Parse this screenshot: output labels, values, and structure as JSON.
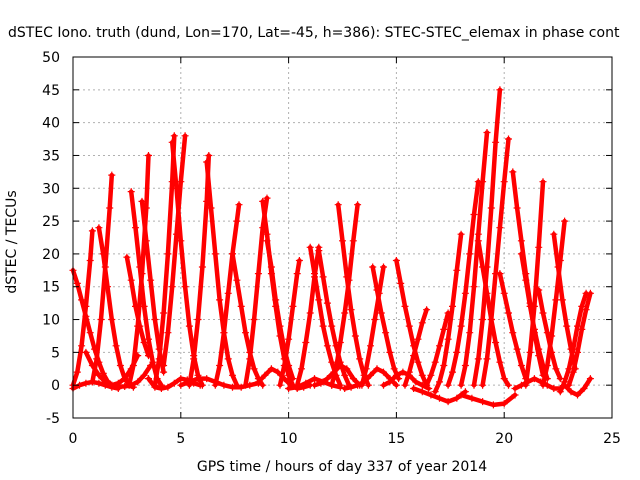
{
  "chart_data": {
    "type": "scatter",
    "title": "dSTEC Iono. truth (dund, Lon=170, Lat=-45, h=386): STEC-STEC_elemax in phase cont",
    "xlabel": "GPS time / hours of day 337 of year 2014",
    "ylabel": "dSTEC  / TECUs",
    "xlim": [
      0,
      25
    ],
    "ylim": [
      -5,
      50
    ],
    "x_ticks": [
      "0",
      "5",
      "10",
      "15",
      "20",
      "25"
    ],
    "y_ticks": [
      "-5",
      "0",
      "5",
      "10",
      "15",
      "20",
      "25",
      "30",
      "35",
      "40",
      "45",
      "50"
    ],
    "grid": true,
    "marker": "+",
    "color": "#ff0000",
    "series": [
      {
        "x": [
          0.0,
          0.2,
          0.4,
          0.6,
          0.8,
          1.0,
          1.2,
          1.4,
          1.6,
          1.8
        ],
        "y": [
          17.5,
          15.5,
          13.0,
          10.5,
          8.0,
          5.5,
          3.5,
          1.8,
          0.6,
          0.0
        ]
      },
      {
        "x": [
          0.0,
          0.3,
          0.6,
          0.9,
          1.2,
          1.5,
          1.8,
          2.1
        ],
        "y": [
          -0.5,
          0.0,
          0.3,
          0.5,
          0.3,
          0.0,
          -0.3,
          -0.5
        ]
      },
      {
        "x": [
          0.0,
          0.2,
          0.4,
          0.6,
          0.8,
          0.9
        ],
        "y": [
          0.0,
          2.0,
          6.0,
          12.0,
          19.0,
          23.5
        ]
      },
      {
        "x": [
          0.6,
          0.9,
          1.2,
          1.5,
          1.8,
          2.1,
          2.4,
          2.7,
          3.0
        ],
        "y": [
          5.0,
          3.0,
          1.5,
          0.5,
          0.0,
          0.3,
          1.0,
          2.5,
          4.5
        ]
      },
      {
        "x": [
          0.9,
          1.1,
          1.3,
          1.5,
          1.7,
          1.8
        ],
        "y": [
          0.5,
          4.0,
          10.0,
          18.0,
          27.0,
          32.0
        ]
      },
      {
        "x": [
          1.2,
          1.4,
          1.6,
          1.8,
          2.0,
          2.2,
          2.4,
          2.6,
          2.8
        ],
        "y": [
          24.0,
          20.0,
          15.0,
          10.0,
          6.0,
          3.0,
          1.0,
          0.0,
          -0.3
        ]
      },
      {
        "x": [
          1.5,
          1.8,
          2.1,
          2.4,
          2.7,
          3.0,
          3.3,
          3.6
        ],
        "y": [
          0.3,
          0.0,
          -0.2,
          -0.2,
          0.0,
          0.5,
          1.5,
          3.0
        ]
      },
      {
        "x": [
          2.6,
          2.8,
          3.0,
          3.2,
          3.4,
          3.5
        ],
        "y": [
          0.0,
          3.0,
          9.0,
          17.0,
          27.0,
          35.0
        ]
      },
      {
        "x": [
          2.7,
          2.9,
          3.1,
          3.3,
          3.5,
          3.7,
          3.9,
          4.1
        ],
        "y": [
          29.5,
          24.0,
          18.0,
          12.0,
          7.0,
          3.5,
          1.0,
          0.0
        ]
      },
      {
        "x": [
          2.5,
          2.7,
          2.9,
          3.1,
          3.3,
          3.5
        ],
        "y": [
          19.5,
          16.0,
          12.0,
          9.0,
          6.5,
          4.5
        ]
      },
      {
        "x": [
          3.2,
          3.4,
          3.6,
          3.8,
          4.0,
          4.2
        ],
        "y": [
          28.0,
          22.0,
          16.0,
          10.0,
          5.5,
          2.0
        ]
      },
      {
        "x": [
          3.5,
          3.8,
          4.1,
          4.4,
          4.7,
          5.0,
          5.3,
          5.6,
          5.9
        ],
        "y": [
          1.0,
          -0.3,
          -0.5,
          -0.3,
          0.3,
          1.0,
          0.8,
          0.3,
          0.0
        ]
      },
      {
        "x": [
          3.8,
          4.0,
          4.2,
          4.4,
          4.6,
          4.7
        ],
        "y": [
          0.0,
          4.0,
          11.0,
          20.0,
          31.0,
          38.0
        ]
      },
      {
        "x": [
          4.6,
          4.8,
          5.0,
          5.2,
          5.4,
          5.6,
          5.8,
          6.0
        ],
        "y": [
          37.0,
          30.0,
          22.0,
          15.0,
          9.0,
          4.5,
          1.5,
          0.0
        ]
      },
      {
        "x": [
          4.2,
          4.4,
          4.6,
          4.8,
          5.0,
          5.2
        ],
        "y": [
          3.0,
          8.0,
          15.0,
          23.0,
          31.0,
          38.0
        ]
      },
      {
        "x": [
          5.4,
          5.6,
          5.8,
          6.0,
          6.2,
          6.3
        ],
        "y": [
          0.0,
          4.0,
          10.0,
          18.0,
          28.0,
          35.0
        ]
      },
      {
        "x": [
          6.2,
          6.4,
          6.6,
          6.8,
          7.0,
          7.2,
          7.4,
          7.6
        ],
        "y": [
          34.0,
          27.0,
          20.0,
          13.0,
          8.0,
          4.0,
          1.5,
          0.0
        ]
      },
      {
        "x": [
          5.0,
          5.4,
          5.8,
          6.2,
          6.6,
          7.0,
          7.4,
          7.8,
          8.2,
          8.6
        ],
        "y": [
          0.0,
          0.5,
          1.0,
          1.0,
          0.5,
          0.0,
          -0.3,
          -0.3,
          0.0,
          0.3
        ]
      },
      {
        "x": [
          6.6,
          6.8,
          7.0,
          7.2,
          7.4,
          7.6,
          7.7
        ],
        "y": [
          0.0,
          3.0,
          8.0,
          14.0,
          20.0,
          25.0,
          27.5
        ]
      },
      {
        "x": [
          7.4,
          7.6,
          7.8,
          8.0,
          8.2,
          8.4,
          8.6,
          8.8
        ],
        "y": [
          20.0,
          16.0,
          12.0,
          8.0,
          5.0,
          2.5,
          1.0,
          0.0
        ]
      },
      {
        "x": [
          8.0,
          8.2,
          8.4,
          8.6,
          8.8,
          9.0
        ],
        "y": [
          0.0,
          4.0,
          10.0,
          17.0,
          24.0,
          28.5
        ]
      },
      {
        "x": [
          8.8,
          9.0,
          9.2,
          9.4,
          9.6,
          9.8,
          10.0,
          10.2
        ],
        "y": [
          28.0,
          23.0,
          17.0,
          12.0,
          7.5,
          4.0,
          1.5,
          0.0
        ]
      },
      {
        "x": [
          8.6,
          8.9,
          9.2,
          9.5,
          9.8,
          10.1,
          10.4,
          10.7,
          11.0
        ],
        "y": [
          0.5,
          1.5,
          2.5,
          2.0,
          1.0,
          0.0,
          -0.5,
          -0.3,
          0.0
        ]
      },
      {
        "x": [
          9.0,
          9.2,
          9.4,
          9.6,
          9.8,
          10.0,
          10.2
        ],
        "y": [
          22.0,
          18.0,
          13.0,
          9.0,
          5.5,
          3.0,
          1.0
        ]
      },
      {
        "x": [
          9.6,
          9.8,
          10.0,
          10.2,
          10.4,
          10.5
        ],
        "y": [
          0.0,
          3.0,
          7.0,
          12.0,
          17.0,
          19.0
        ]
      },
      {
        "x": [
          10.0,
          10.4,
          10.8,
          11.2,
          11.6,
          12.0,
          12.4
        ],
        "y": [
          -0.5,
          -0.3,
          0.3,
          1.0,
          0.5,
          0.0,
          -0.3
        ]
      },
      {
        "x": [
          10.4,
          10.6,
          10.8,
          11.0,
          11.2,
          11.4
        ],
        "y": [
          0.0,
          2.5,
          6.5,
          11.0,
          16.5,
          21.0
        ]
      },
      {
        "x": [
          11.0,
          11.2,
          11.4,
          11.6,
          11.8,
          12.0,
          12.2,
          12.4
        ],
        "y": [
          21.0,
          17.0,
          13.0,
          9.0,
          6.0,
          3.5,
          1.5,
          0.0
        ]
      },
      {
        "x": [
          11.4,
          11.6,
          11.8,
          12.0,
          12.2,
          12.4,
          12.6,
          12.8
        ],
        "y": [
          20.5,
          16.5,
          12.5,
          9.0,
          6.0,
          3.5,
          1.5,
          0.0
        ]
      },
      {
        "x": [
          11.2,
          11.5,
          11.8,
          12.1,
          12.4,
          12.7,
          13.0,
          13.3
        ],
        "y": [
          0.0,
          0.3,
          1.0,
          2.0,
          3.0,
          2.5,
          1.0,
          0.0
        ]
      },
      {
        "x": [
          12.0,
          12.2,
          12.4,
          12.6,
          12.8,
          13.0,
          13.2
        ],
        "y": [
          0.0,
          2.5,
          6.5,
          11.0,
          16.0,
          22.0,
          27.5
        ]
      },
      {
        "x": [
          12.3,
          12.5,
          12.7,
          12.9,
          13.1,
          13.3,
          13.5,
          13.7
        ],
        "y": [
          27.5,
          22.0,
          16.5,
          11.5,
          7.5,
          4.0,
          1.5,
          0.0
        ]
      },
      {
        "x": [
          12.6,
          12.9,
          13.2,
          13.5,
          13.8,
          14.1,
          14.4,
          14.7,
          15.0
        ],
        "y": [
          -0.5,
          -0.3,
          0.0,
          0.5,
          1.5,
          2.5,
          2.0,
          1.0,
          0.0
        ]
      },
      {
        "x": [
          13.4,
          13.6,
          13.8,
          14.0,
          14.2,
          14.4
        ],
        "y": [
          0.0,
          2.5,
          6.0,
          10.0,
          14.0,
          18.0
        ]
      },
      {
        "x": [
          13.9,
          14.1,
          14.3,
          14.5,
          14.7,
          14.9,
          15.1
        ],
        "y": [
          18.0,
          14.5,
          11.0,
          8.0,
          5.0,
          2.5,
          1.0
        ]
      },
      {
        "x": [
          14.4,
          14.7,
          15.0,
          15.3,
          15.6,
          15.9,
          16.2,
          16.5
        ],
        "y": [
          0.0,
          0.5,
          1.5,
          2.0,
          1.5,
          0.5,
          0.0,
          -0.5
        ]
      },
      {
        "x": [
          15.0,
          15.2,
          15.4,
          15.6,
          15.8,
          16.0,
          16.2,
          16.4
        ],
        "y": [
          19.0,
          15.5,
          12.0,
          9.0,
          6.0,
          3.5,
          1.5,
          0.0
        ]
      },
      {
        "x": [
          15.4,
          15.6,
          15.8,
          16.0,
          16.2,
          16.4
        ],
        "y": [
          0.0,
          2.0,
          4.5,
          7.0,
          9.5,
          11.5
        ]
      },
      {
        "x": [
          15.8,
          16.2,
          16.6,
          17.0,
          17.4,
          17.8,
          18.2
        ],
        "y": [
          -0.5,
          -1.0,
          -1.5,
          -2.0,
          -2.5,
          -2.0,
          -1.0
        ]
      },
      {
        "x": [
          16.4,
          16.6,
          16.8,
          17.0,
          17.2,
          17.4
        ],
        "y": [
          0.0,
          1.5,
          3.5,
          6.0,
          8.5,
          11.0
        ]
      },
      {
        "x": [
          16.8,
          17.0,
          17.2,
          17.4,
          17.6,
          17.8,
          18.0
        ],
        "y": [
          -1.0,
          0.5,
          3.0,
          7.0,
          12.0,
          17.5,
          23.0
        ]
      },
      {
        "x": [
          17.4,
          17.6,
          17.8,
          18.0,
          18.2,
          18.4,
          18.6,
          18.8
        ],
        "y": [
          0.0,
          2.0,
          5.0,
          9.0,
          14.0,
          20.0,
          26.0,
          31.0
        ]
      },
      {
        "x": [
          18.0,
          18.2,
          18.4,
          18.6,
          18.8,
          19.0,
          19.2
        ],
        "y": [
          0.0,
          3.0,
          8.0,
          15.0,
          23.0,
          31.0,
          38.5
        ]
      },
      {
        "x": [
          18.6,
          18.8,
          19.0,
          19.2,
          19.4,
          19.6,
          19.8
        ],
        "y": [
          0.0,
          4.0,
          10.0,
          18.0,
          27.0,
          37.0,
          45.0
        ]
      },
      {
        "x": [
          19.0,
          19.2,
          19.4,
          19.6,
          19.8,
          20.0,
          20.2
        ],
        "y": [
          0.0,
          4.0,
          10.0,
          17.0,
          24.0,
          31.0,
          37.5
        ]
      },
      {
        "x": [
          18.8,
          19.0,
          19.2,
          19.4,
          19.6,
          19.8,
          20.0,
          20.2
        ],
        "y": [
          22.0,
          18.0,
          14.0,
          10.0,
          6.5,
          3.5,
          1.0,
          0.0
        ]
      },
      {
        "x": [
          18.0,
          18.5,
          19.0,
          19.5,
          20.0,
          20.5
        ],
        "y": [
          -1.5,
          -2.0,
          -2.5,
          -3.0,
          -2.8,
          -1.5
        ]
      },
      {
        "x": [
          19.8,
          20.0,
          20.2,
          20.4,
          20.6,
          20.8,
          21.0
        ],
        "y": [
          17.0,
          14.0,
          11.0,
          8.0,
          5.5,
          3.0,
          1.0
        ]
      },
      {
        "x": [
          20.4,
          20.6,
          20.8,
          21.0,
          21.2,
          21.4,
          21.6,
          21.8
        ],
        "y": [
          32.5,
          27.0,
          22.0,
          17.0,
          12.5,
          8.0,
          4.5,
          1.5
        ]
      },
      {
        "x": [
          20.8,
          21.0,
          21.2,
          21.4,
          21.6,
          21.8,
          22.0
        ],
        "y": [
          20.0,
          16.0,
          12.0,
          8.5,
          5.5,
          3.0,
          1.0
        ]
      },
      {
        "x": [
          20.5,
          20.8,
          21.1,
          21.4,
          21.7,
          22.0,
          22.3,
          22.6
        ],
        "y": [
          -0.5,
          0.0,
          0.5,
          1.0,
          0.5,
          0.0,
          -0.5,
          -0.5
        ]
      },
      {
        "x": [
          21.0,
          21.2,
          21.4,
          21.6,
          21.8
        ],
        "y": [
          0.0,
          5.0,
          12.0,
          21.0,
          31.0
        ]
      },
      {
        "x": [
          21.6,
          21.8,
          22.0,
          22.2,
          22.4,
          22.6
        ],
        "y": [
          14.5,
          11.0,
          8.0,
          5.0,
          2.5,
          1.0
        ]
      },
      {
        "x": [
          21.8,
          22.0,
          22.2,
          22.4,
          22.6,
          22.8
        ],
        "y": [
          0.0,
          3.0,
          7.5,
          13.0,
          19.0,
          25.0
        ]
      },
      {
        "x": [
          22.3,
          22.5,
          22.7,
          22.9,
          23.1,
          23.3
        ],
        "y": [
          23.0,
          18.0,
          13.0,
          9.0,
          5.5,
          2.5
        ]
      },
      {
        "x": [
          22.6,
          22.8,
          23.0,
          23.2,
          23.4,
          23.6,
          23.8
        ],
        "y": [
          -1.0,
          0.5,
          2.5,
          5.5,
          9.0,
          12.0,
          14.0
        ]
      },
      {
        "x": [
          22.8,
          23.1,
          23.4,
          23.7,
          24.0
        ],
        "y": [
          0.0,
          -1.0,
          -1.5,
          -0.5,
          1.0
        ]
      },
      {
        "x": [
          23.0,
          23.2,
          23.4,
          23.6,
          23.8,
          24.0
        ],
        "y": [
          0.0,
          2.0,
          5.0,
          8.5,
          11.5,
          14.0
        ]
      }
    ]
  }
}
